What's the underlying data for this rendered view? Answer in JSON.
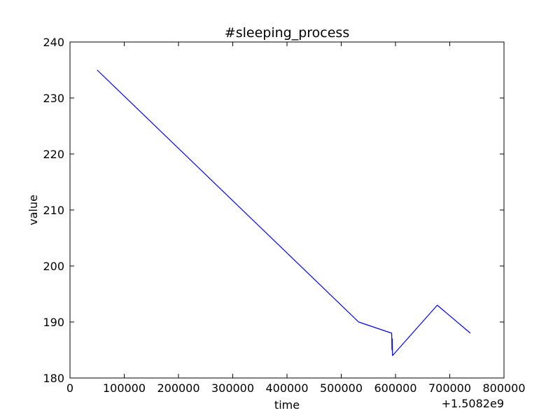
{
  "chart_data": {
    "type": "line",
    "title": "#sleeping_process",
    "xlabel": "time",
    "ylabel": "value",
    "x_offset_label": "+1.5082e9",
    "xlim": [
      0,
      800000
    ],
    "ylim": [
      180,
      240
    ],
    "x_ticks": [
      0,
      100000,
      200000,
      300000,
      400000,
      500000,
      600000,
      700000,
      800000
    ],
    "y_ticks": [
      180,
      190,
      200,
      210,
      220,
      230,
      240
    ],
    "grid": false,
    "legend": "none",
    "series": [
      {
        "color": "#0000ff",
        "points": [
          [
            50000,
            235
          ],
          [
            532000,
            190
          ],
          [
            593000,
            188
          ],
          [
            593500,
            185
          ],
          [
            594000,
            187
          ],
          [
            594500,
            184
          ],
          [
            677000,
            193
          ],
          [
            738000,
            188
          ]
        ]
      }
    ]
  }
}
